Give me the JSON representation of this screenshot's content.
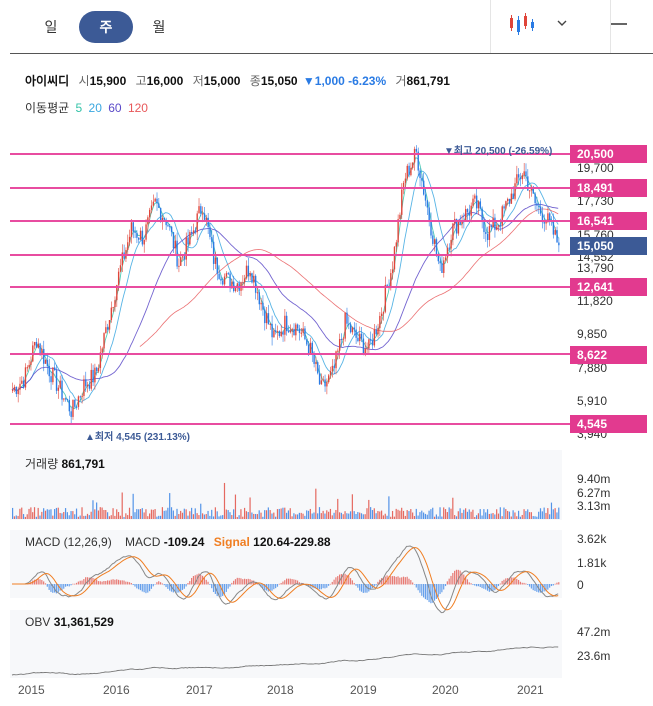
{
  "tabs": [
    {
      "label": "일"
    },
    {
      "label": "주"
    },
    {
      "label": "월"
    }
  ],
  "icons": {
    "chart_type": "candlestick-icon",
    "dropdown": "chevron-down-icon",
    "menu": "hamburger-menu-icon"
  },
  "quote": {
    "name": "아이씨디",
    "open_label": "시",
    "open": "15,900",
    "high_label": "고",
    "high": "16,000",
    "low_label": "저",
    "low": "15,000",
    "close_label": "종",
    "close": "15,050",
    "change": "▼1,000 -6.23%",
    "volume_label": "거",
    "volume": "861,791"
  },
  "moving_average": {
    "label": "이동평균",
    "periods": [
      {
        "value": "5",
        "color": "#34c3a8"
      },
      {
        "value": "20",
        "color": "#3aa7e0"
      },
      {
        "value": "60",
        "color": "#5a49c8"
      },
      {
        "value": "120",
        "color": "#e8585a"
      }
    ]
  },
  "price_axis": [
    "19,700",
    "17,730",
    "15,760",
    "14,552",
    "13,790",
    "11,820",
    "9,850",
    "7,880",
    "5,910",
    "3,940"
  ],
  "price_tags": [
    {
      "label": "20,500",
      "type": "level"
    },
    {
      "label": "18,491",
      "type": "level"
    },
    {
      "label": "16,541",
      "type": "level"
    },
    {
      "label": "15,050",
      "type": "current"
    },
    {
      "label": "12,641",
      "type": "level"
    },
    {
      "label": "8,622",
      "type": "level"
    },
    {
      "label": "4,545",
      "type": "level"
    }
  ],
  "annotations": {
    "high": "▼최고 20,500 (-26.59%)",
    "low": "▲최저 4,545 (231.13%)"
  },
  "volume_panel": {
    "title": "거래량",
    "value": "861,791",
    "axis": [
      "9.40m",
      "6.27m",
      "3.13m"
    ]
  },
  "macd_panel": {
    "title": "MACD (12,26,9)",
    "macd_label": "MACD",
    "macd_value": "-109.24",
    "signal_label": "Signal",
    "signal_value": "120.64-229.88",
    "axis": [
      "3.62k",
      "1.81k",
      "0"
    ]
  },
  "obv_panel": {
    "title": "OBV",
    "value": "31,361,529",
    "axis": [
      "47.2m",
      "23.6m"
    ]
  },
  "years": [
    "2015",
    "2016",
    "2017",
    "2018",
    "2019",
    "2020",
    "2021"
  ],
  "colors": {
    "up": "#e0453a",
    "down": "#2a7be4",
    "level_line": "#e84ca0",
    "accent": "#3c5a96",
    "signal": "#f07e22"
  },
  "chart_data": {
    "type": "candlestick",
    "xlabel": "",
    "ylabel": "",
    "ylim": [
      3940,
      20500
    ],
    "years": [
      "2015",
      "2016",
      "2017",
      "2018",
      "2019",
      "2020",
      "2021"
    ],
    "close_path": [
      6500,
      7200,
      9500,
      7800,
      6500,
      5200,
      6800,
      7400,
      10500,
      13500,
      16000,
      15500,
      17500,
      16500,
      14000,
      15500,
      17500,
      14000,
      13000,
      12800,
      13800,
      11500,
      9500,
      10500,
      10200,
      9000,
      6500,
      7500,
      10500,
      9500,
      8900,
      11000,
      14000,
      19000,
      20500,
      17000,
      13500,
      16000,
      16800,
      17500,
      15800,
      16500,
      18000,
      19500,
      17500,
      16541,
      15050
    ],
    "support_levels": [
      20500,
      18491,
      16541,
      12641,
      8622,
      4545
    ],
    "current": 15050
  }
}
